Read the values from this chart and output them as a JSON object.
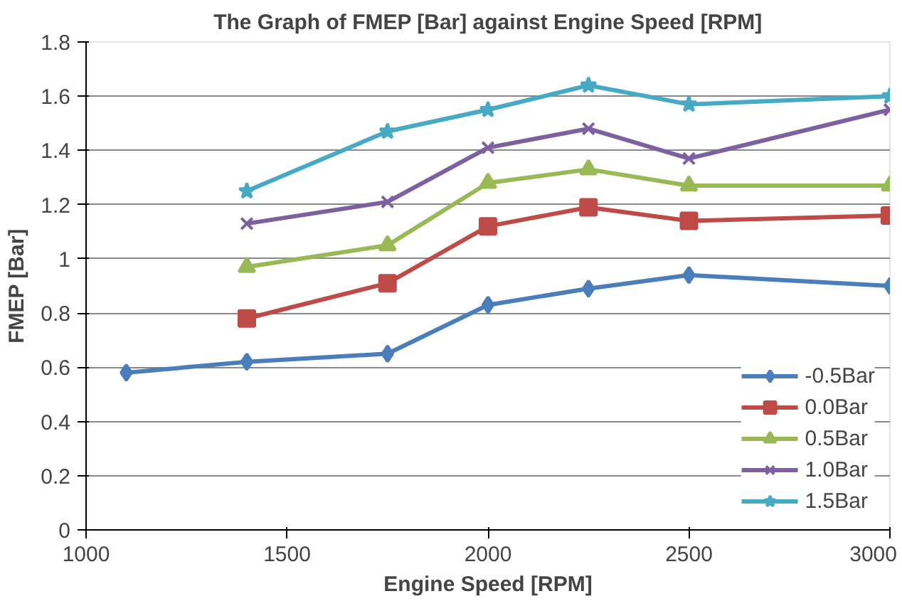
{
  "chart_data": {
    "type": "line",
    "title": "The Graph of FMEP [Bar] against Engine Speed [RPM]",
    "xlabel": "Engine Speed [RPM]",
    "ylabel": "FMEP [Bar]",
    "xlim": [
      1000,
      3000
    ],
    "xticks": [
      1000,
      1500,
      2000,
      2500,
      3000
    ],
    "ylim": [
      0,
      1.8
    ],
    "yticks": [
      0,
      0.2,
      0.4,
      0.6,
      0.8,
      1,
      1.2,
      1.4,
      1.6,
      1.8
    ],
    "grid": "y",
    "legend": "bottom right",
    "line_style": "solid",
    "series": [
      {
        "name": "-0.5Bar",
        "color": "#4a7ebb",
        "marker": "diamond",
        "x": [
          1100,
          1400,
          1750,
          2000,
          2250,
          2500,
          3000
        ],
        "values": [
          0.58,
          0.62,
          0.65,
          0.83,
          0.89,
          0.94,
          0.9
        ]
      },
      {
        "name": "0.0Bar",
        "color": "#be4b48",
        "marker": "square",
        "x": [
          1400,
          1750,
          2000,
          2250,
          2500,
          3000
        ],
        "values": [
          0.78,
          0.91,
          1.12,
          1.19,
          1.14,
          1.16
        ]
      },
      {
        "name": "0.5Bar",
        "color": "#98b954",
        "marker": "triangle",
        "x": [
          1400,
          1750,
          2000,
          2250,
          2500,
          3000
        ],
        "values": [
          0.97,
          1.05,
          1.28,
          1.33,
          1.27,
          1.27
        ]
      },
      {
        "name": "1.0Bar",
        "color": "#7d60a0",
        "marker": "cross",
        "x": [
          1400,
          1750,
          2000,
          2250,
          2500,
          3000
        ],
        "values": [
          1.13,
          1.21,
          1.41,
          1.48,
          1.37,
          1.55
        ]
      },
      {
        "name": "1.5Bar",
        "color": "#46aac5",
        "marker": "star",
        "x": [
          1400,
          1750,
          2000,
          2250,
          2500,
          3000
        ],
        "values": [
          1.25,
          1.47,
          1.55,
          1.64,
          1.57,
          1.6
        ]
      }
    ]
  }
}
